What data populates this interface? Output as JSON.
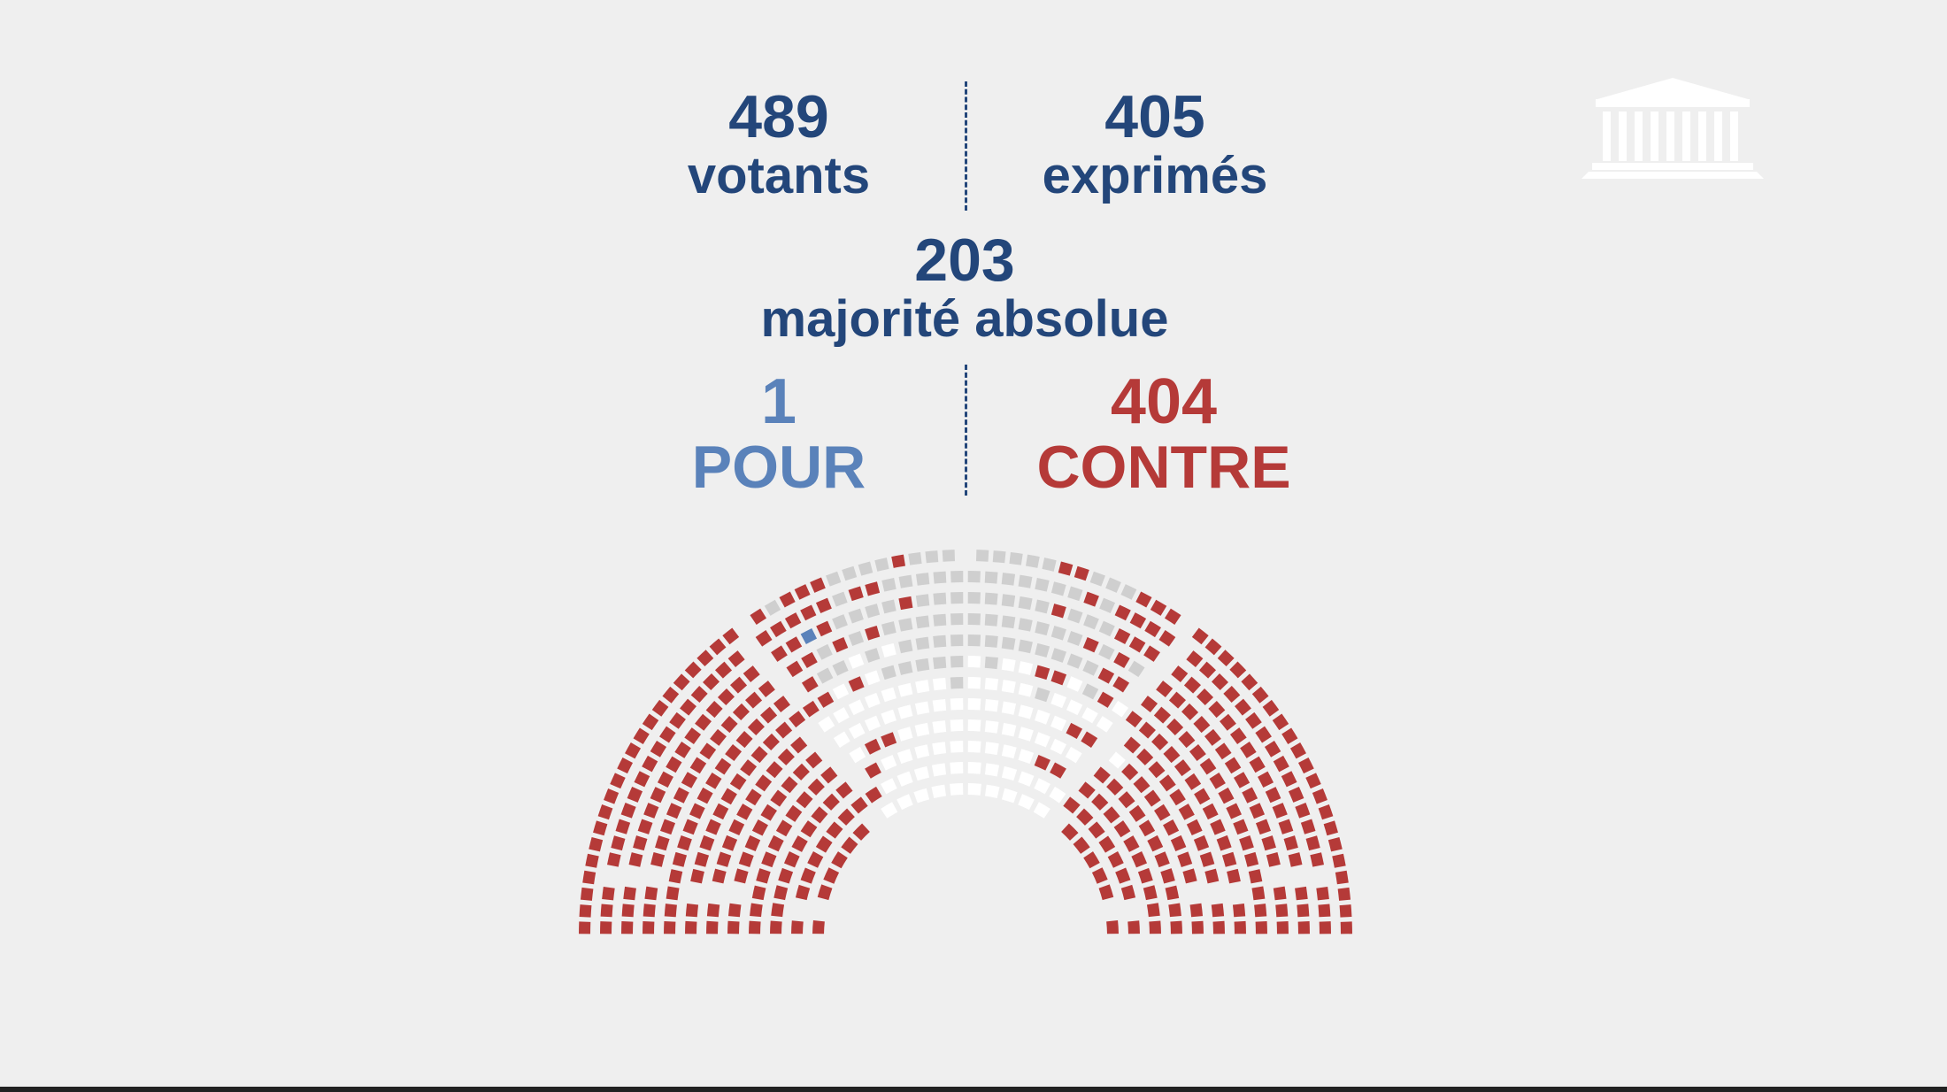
{
  "stats": {
    "votants": {
      "value": "489",
      "label": "votants"
    },
    "exprimes": {
      "value": "405",
      "label": "exprimés"
    },
    "majorite": {
      "value": "203",
      "label": "majorité absolue"
    },
    "pour": {
      "value": "1",
      "label": "POUR"
    },
    "contre": {
      "value": "404",
      "label": "CONTRE"
    }
  },
  "colors": {
    "pour": "#5a82ba",
    "contre": "#b53a38",
    "absent": "#cfcfcf",
    "abstention": "#ffffff",
    "text": "#23467a"
  },
  "chart_data": {
    "type": "hemicycle",
    "series": [
      {
        "key": "pour",
        "value": 1
      },
      {
        "key": "contre",
        "value": 404
      },
      {
        "key": "abstention",
        "value": 84
      }
    ],
    "total_seats": 577
  }
}
